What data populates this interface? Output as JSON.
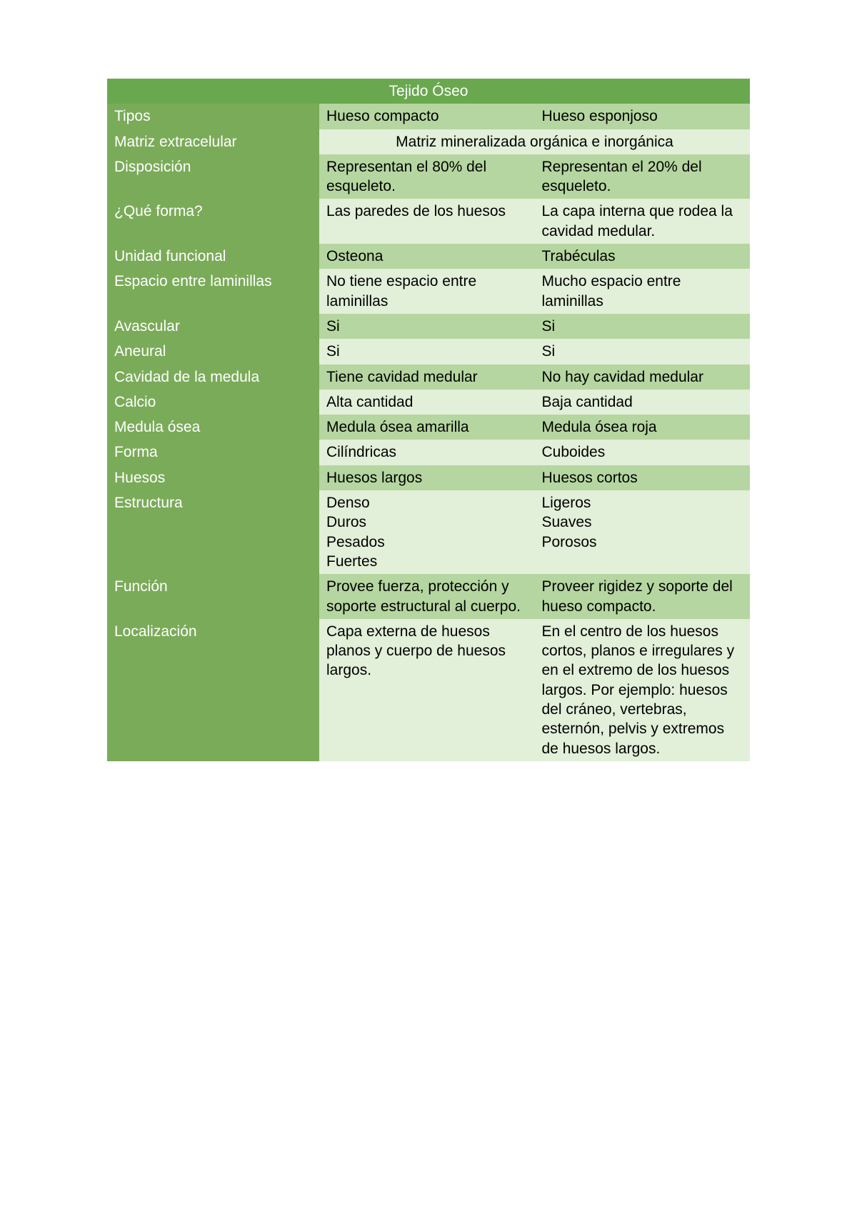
{
  "colors": {
    "titleBg": "#6aa84f",
    "labelBg": "#7aab59",
    "rowDarkBg": "#b5d6a0",
    "rowLightBg": "#e2efd9",
    "labelText": "#ffffff",
    "dataText": "#000000"
  },
  "table": {
    "title": "Tejido Óseo",
    "columns": {
      "labelWidthPct": 33,
      "dataWidthPct": 33.5
    },
    "rows": [
      {
        "label": "Tipos",
        "col1": "Hueso compacto",
        "col2": "Hueso esponjoso",
        "shade": "dark"
      },
      {
        "label": "Matriz extracelular",
        "merged": "Matriz mineralizada orgánica e inorgánica",
        "shade": "light"
      },
      {
        "label": "Disposición",
        "col1": "Representan el 80% del esqueleto.",
        "col2": "Representan el 20% del esqueleto.",
        "shade": "dark"
      },
      {
        "label": "¿Qué forma?",
        "col1": "Las paredes de los huesos",
        "col2": "La capa interna que rodea la cavidad medular.",
        "shade": "light"
      },
      {
        "label": "Unidad funcional",
        "col1": "Osteona",
        "col2": "Trabéculas",
        "shade": "dark"
      },
      {
        "label": "Espacio entre laminillas",
        "col1": "No tiene espacio entre laminillas",
        "col2": "Mucho espacio entre laminillas",
        "shade": "light"
      },
      {
        "label": "Avascular",
        "col1": "Si",
        "col2": "Si",
        "shade": "dark"
      },
      {
        "label": "Aneural",
        "col1": "Si",
        "col2": "Si",
        "shade": "light"
      },
      {
        "label": "Cavidad de la medula",
        "col1": "Tiene cavidad medular",
        "col2": "No hay cavidad medular",
        "shade": "dark"
      },
      {
        "label": "Calcio",
        "col1": "Alta cantidad",
        "col2": "Baja cantidad",
        "shade": "light"
      },
      {
        "label": "Medula ósea",
        "col1": "Medula ósea amarilla",
        "col2": "Medula ósea roja",
        "shade": "dark"
      },
      {
        "label": "Forma",
        "col1": "Cilíndricas",
        "col2": "Cuboides",
        "shade": "light"
      },
      {
        "label": "Huesos",
        "col1": "Huesos largos",
        "col2": "Huesos cortos",
        "shade": "dark"
      },
      {
        "label": "Estructura",
        "col1": "Denso\nDuros\nPesados\nFuertes",
        "col2": "Ligeros\nSuaves\nPorosos",
        "shade": "light"
      },
      {
        "label": "Función",
        "col1": "Provee fuerza, protección y soporte estructural al cuerpo.",
        "col2": "Proveer rigidez y soporte del hueso compacto.",
        "shade": "dark"
      },
      {
        "label": "Localización",
        "col1": "Capa externa de huesos planos y cuerpo de huesos largos.",
        "col2": "En el centro de los huesos cortos, planos e irregulares y en el extremo de los huesos largos. Por ejemplo: huesos del cráneo, vertebras, esternón, pelvis y extremos de huesos largos.",
        "shade": "light"
      }
    ]
  }
}
